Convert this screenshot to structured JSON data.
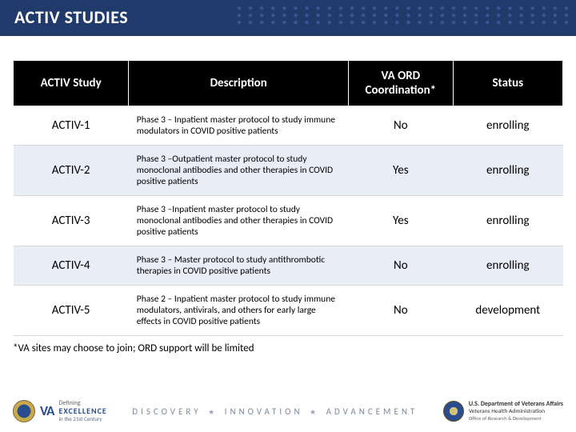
{
  "title": "ACTIV STUDIES",
  "columns": [
    "ACTIV Study",
    "Description",
    "VA ORD Coordination*",
    "Status"
  ],
  "rows": [
    {
      "study": "ACTIV-1",
      "desc": "Phase 3 – Inpatient master protocol to study immune modulators in COVID positive patients",
      "coord": "No",
      "status": "enrolling"
    },
    {
      "study": "ACTIV-2",
      "desc": "Phase 3 –Outpatient master protocol to study monoclonal antibodies and other therapies in COVID positive patients",
      "coord": "Yes",
      "status": "enrolling"
    },
    {
      "study": "ACTIV-3",
      "desc": "Phase 3 –Inpatient master protocol to study monoclonal antibodies and other therapies in COVID positive patients",
      "coord": "Yes",
      "status": "enrolling"
    },
    {
      "study": "ACTIV-4",
      "desc": "Phase 3 – Master protocol to study antithrombotic therapies in COVID positive patients",
      "coord": "No",
      "status": "enrolling"
    },
    {
      "study": "ACTIV-5",
      "desc": "Phase 2 – Inpatient master protocol to study immune modulators, antivirals, and others for early large effects in COVID positive patients",
      "coord": "No",
      "status": "development"
    }
  ],
  "footnote": "*VA sites may choose to join; ORD support will be limited",
  "footer": {
    "va_big": "VA",
    "va_define": "Defining",
    "va_exc": "EXCELLENCE",
    "va_sub": "in the 21st Century",
    "center_words": [
      "DISCOVERY",
      "INNOVATION",
      "ADVANCEMENT"
    ],
    "us_line1": "U.S. Department of Veterans Affairs",
    "us_line2": "Veterans Health Administration",
    "us_line3": "Office of Research & Development"
  },
  "colors": {
    "title_bg": "#1f3a6b",
    "header_bg": "#000000",
    "alt_row_bg": "#e9edf5",
    "border": "#d9d9d9"
  }
}
